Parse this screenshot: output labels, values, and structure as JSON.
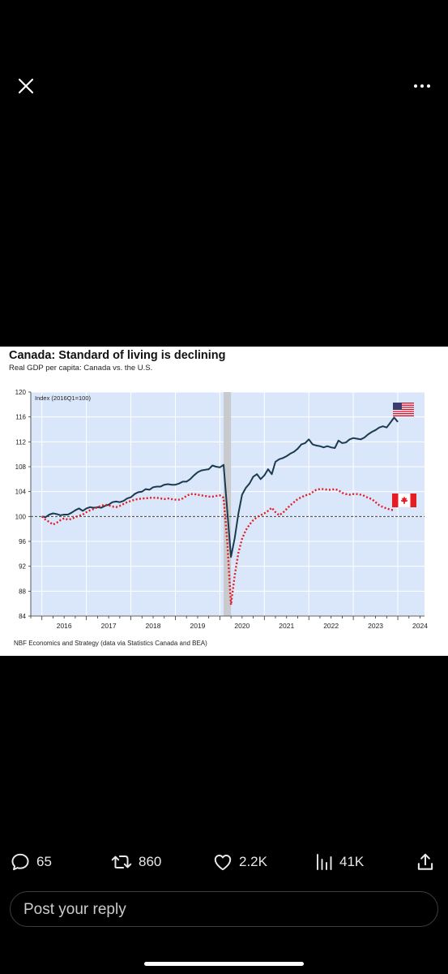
{
  "media": {
    "title": "Canada: Standard of living is declining",
    "subtitle": "Real GDP per capita: Canada vs. the U.S.",
    "source": "NBF Economics and Strategy (data via Statistics Canada and BEA)"
  },
  "chart_data": {
    "type": "line",
    "ylabel": "Index (2016Q1=100)",
    "ylim": [
      84,
      120
    ],
    "yticks": [
      84,
      88,
      92,
      96,
      100,
      104,
      108,
      112,
      116,
      120
    ],
    "xticks": [
      "2016",
      "2017",
      "2018",
      "2019",
      "2020",
      "2021",
      "2022",
      "2023",
      "2024"
    ],
    "reference_line": 100,
    "recession_shading": [
      "2020-Feb",
      "2020-Apr"
    ],
    "series": [
      {
        "flag": "us-flag",
        "color": "#1b3a4f",
        "style": "solid",
        "points": [
          [
            "2016-01",
            100.0
          ],
          [
            "2016-02",
            99.9
          ],
          [
            "2016-03",
            100.3
          ],
          [
            "2016-04",
            100.5
          ],
          [
            "2016-05",
            100.4
          ],
          [
            "2016-06",
            100.2
          ],
          [
            "2016-07",
            100.3
          ],
          [
            "2016-08",
            100.3
          ],
          [
            "2016-09",
            100.6
          ],
          [
            "2016-10",
            101.0
          ],
          [
            "2016-11",
            101.3
          ],
          [
            "2016-12",
            100.9
          ],
          [
            "2017-01",
            101.3
          ],
          [
            "2017-02",
            101.5
          ],
          [
            "2017-03",
            101.4
          ],
          [
            "2017-04",
            101.5
          ],
          [
            "2017-05",
            101.4
          ],
          [
            "2017-06",
            101.7
          ],
          [
            "2017-07",
            101.9
          ],
          [
            "2017-08",
            102.3
          ],
          [
            "2017-09",
            102.4
          ],
          [
            "2017-10",
            102.3
          ],
          [
            "2017-11",
            102.5
          ],
          [
            "2017-12",
            102.9
          ],
          [
            "2018-01",
            103.1
          ],
          [
            "2018-02",
            103.6
          ],
          [
            "2018-03",
            103.9
          ],
          [
            "2018-04",
            104.0
          ],
          [
            "2018-05",
            104.4
          ],
          [
            "2018-06",
            104.3
          ],
          [
            "2018-07",
            104.7
          ],
          [
            "2018-08",
            104.8
          ],
          [
            "2018-09",
            104.8
          ],
          [
            "2018-10",
            105.1
          ],
          [
            "2018-11",
            105.2
          ],
          [
            "2018-12",
            105.1
          ],
          [
            "2019-01",
            105.1
          ],
          [
            "2019-02",
            105.3
          ],
          [
            "2019-03",
            105.6
          ],
          [
            "2019-04",
            105.6
          ],
          [
            "2019-05",
            106.0
          ],
          [
            "2019-06",
            106.6
          ],
          [
            "2019-07",
            107.1
          ],
          [
            "2019-08",
            107.4
          ],
          [
            "2019-09",
            107.5
          ],
          [
            "2019-10",
            107.6
          ],
          [
            "2019-11",
            108.2
          ],
          [
            "2019-12",
            108.0
          ],
          [
            "2020-01",
            107.9
          ],
          [
            "2020-02",
            108.3
          ],
          [
            "2020-03",
            101.0
          ],
          [
            "2020-04",
            93.5
          ],
          [
            "2020-05",
            96.5
          ],
          [
            "2020-06",
            100.5
          ],
          [
            "2020-07",
            103.5
          ],
          [
            "2020-08",
            104.6
          ],
          [
            "2020-09",
            105.3
          ],
          [
            "2020-10",
            106.4
          ],
          [
            "2020-11",
            106.8
          ],
          [
            "2020-12",
            106.0
          ],
          [
            "2021-01",
            106.6
          ],
          [
            "2021-02",
            107.6
          ],
          [
            "2021-03",
            106.8
          ],
          [
            "2021-04",
            108.8
          ],
          [
            "2021-05",
            109.2
          ],
          [
            "2021-06",
            109.4
          ],
          [
            "2021-07",
            109.7
          ],
          [
            "2021-08",
            110.1
          ],
          [
            "2021-09",
            110.4
          ],
          [
            "2021-10",
            110.9
          ],
          [
            "2021-11",
            111.6
          ],
          [
            "2021-12",
            111.8
          ],
          [
            "2022-01",
            112.4
          ],
          [
            "2022-02",
            111.6
          ],
          [
            "2022-03",
            111.4
          ],
          [
            "2022-04",
            111.3
          ],
          [
            "2022-05",
            111.1
          ],
          [
            "2022-06",
            111.3
          ],
          [
            "2022-07",
            111.1
          ],
          [
            "2022-08",
            111.0
          ],
          [
            "2022-09",
            112.2
          ],
          [
            "2022-10",
            111.8
          ],
          [
            "2022-11",
            111.9
          ],
          [
            "2022-12",
            112.4
          ],
          [
            "2023-01",
            112.6
          ],
          [
            "2023-02",
            112.5
          ],
          [
            "2023-03",
            112.4
          ],
          [
            "2023-04",
            112.7
          ],
          [
            "2023-05",
            113.2
          ],
          [
            "2023-06",
            113.6
          ],
          [
            "2023-07",
            113.9
          ],
          [
            "2023-08",
            114.3
          ],
          [
            "2023-09",
            114.5
          ],
          [
            "2023-10",
            114.3
          ],
          [
            "2023-11",
            115.1
          ],
          [
            "2023-12",
            115.9
          ],
          [
            "2024-01",
            115.2
          ]
        ]
      },
      {
        "flag": "canada-flag",
        "color": "#e41c23",
        "style": "dotted",
        "points": [
          [
            "2016-01",
            100.0
          ],
          [
            "2016-02",
            99.5
          ],
          [
            "2016-03",
            99.1
          ],
          [
            "2016-04",
            98.7
          ],
          [
            "2016-05",
            99.0
          ],
          [
            "2016-06",
            99.4
          ],
          [
            "2016-07",
            99.7
          ],
          [
            "2016-08",
            99.5
          ],
          [
            "2016-09",
            99.6
          ],
          [
            "2016-10",
            99.9
          ],
          [
            "2016-11",
            100.1
          ],
          [
            "2016-12",
            100.3
          ],
          [
            "2017-01",
            100.7
          ],
          [
            "2017-02",
            101.0
          ],
          [
            "2017-03",
            101.2
          ],
          [
            "2017-04",
            101.5
          ],
          [
            "2017-05",
            101.7
          ],
          [
            "2017-06",
            101.9
          ],
          [
            "2017-07",
            101.8
          ],
          [
            "2017-08",
            101.6
          ],
          [
            "2017-09",
            101.5
          ],
          [
            "2017-10",
            101.7
          ],
          [
            "2017-11",
            102.0
          ],
          [
            "2017-12",
            102.3
          ],
          [
            "2018-01",
            102.5
          ],
          [
            "2018-02",
            102.7
          ],
          [
            "2018-03",
            102.8
          ],
          [
            "2018-04",
            102.9
          ],
          [
            "2018-05",
            102.9
          ],
          [
            "2018-06",
            103.0
          ],
          [
            "2018-07",
            103.0
          ],
          [
            "2018-08",
            103.0
          ],
          [
            "2018-09",
            102.9
          ],
          [
            "2018-10",
            102.8
          ],
          [
            "2018-11",
            102.9
          ],
          [
            "2018-12",
            102.8
          ],
          [
            "2019-01",
            102.7
          ],
          [
            "2019-02",
            102.7
          ],
          [
            "2019-03",
            102.9
          ],
          [
            "2019-04",
            103.3
          ],
          [
            "2019-05",
            103.6
          ],
          [
            "2019-06",
            103.6
          ],
          [
            "2019-07",
            103.5
          ],
          [
            "2019-08",
            103.4
          ],
          [
            "2019-09",
            103.3
          ],
          [
            "2019-10",
            103.2
          ],
          [
            "2019-11",
            103.2
          ],
          [
            "2019-12",
            103.3
          ],
          [
            "2020-01",
            103.4
          ],
          [
            "2020-02",
            103.0
          ],
          [
            "2020-03",
            96.0
          ],
          [
            "2020-04",
            85.8
          ],
          [
            "2020-05",
            90.5
          ],
          [
            "2020-06",
            94.2
          ],
          [
            "2020-07",
            96.4
          ],
          [
            "2020-08",
            97.8
          ],
          [
            "2020-09",
            98.7
          ],
          [
            "2020-10",
            99.4
          ],
          [
            "2020-11",
            99.9
          ],
          [
            "2020-12",
            100.2
          ],
          [
            "2021-01",
            100.5
          ],
          [
            "2021-02",
            100.9
          ],
          [
            "2021-03",
            101.4
          ],
          [
            "2021-04",
            100.7
          ],
          [
            "2021-05",
            100.2
          ],
          [
            "2021-06",
            100.6
          ],
          [
            "2021-07",
            101.2
          ],
          [
            "2021-08",
            101.8
          ],
          [
            "2021-09",
            102.3
          ],
          [
            "2021-10",
            102.8
          ],
          [
            "2021-11",
            103.1
          ],
          [
            "2021-12",
            103.4
          ],
          [
            "2022-01",
            103.5
          ],
          [
            "2022-02",
            103.9
          ],
          [
            "2022-03",
            104.3
          ],
          [
            "2022-04",
            104.4
          ],
          [
            "2022-05",
            104.4
          ],
          [
            "2022-06",
            104.3
          ],
          [
            "2022-07",
            104.3
          ],
          [
            "2022-08",
            104.4
          ],
          [
            "2022-09",
            104.2
          ],
          [
            "2022-10",
            103.8
          ],
          [
            "2022-11",
            103.6
          ],
          [
            "2022-12",
            103.5
          ],
          [
            "2023-01",
            103.6
          ],
          [
            "2023-02",
            103.6
          ],
          [
            "2023-03",
            103.5
          ],
          [
            "2023-04",
            103.3
          ],
          [
            "2023-05",
            103.0
          ],
          [
            "2023-06",
            102.8
          ],
          [
            "2023-07",
            102.3
          ],
          [
            "2023-08",
            101.8
          ],
          [
            "2023-09",
            101.5
          ],
          [
            "2023-10",
            101.3
          ],
          [
            "2023-11",
            101.1
          ],
          [
            "2023-12",
            101.0
          ]
        ]
      }
    ]
  },
  "actions": {
    "replies": "65",
    "reposts": "860",
    "likes": "2.2K",
    "views": "41K"
  },
  "reply": {
    "placeholder": "Post your reply"
  }
}
